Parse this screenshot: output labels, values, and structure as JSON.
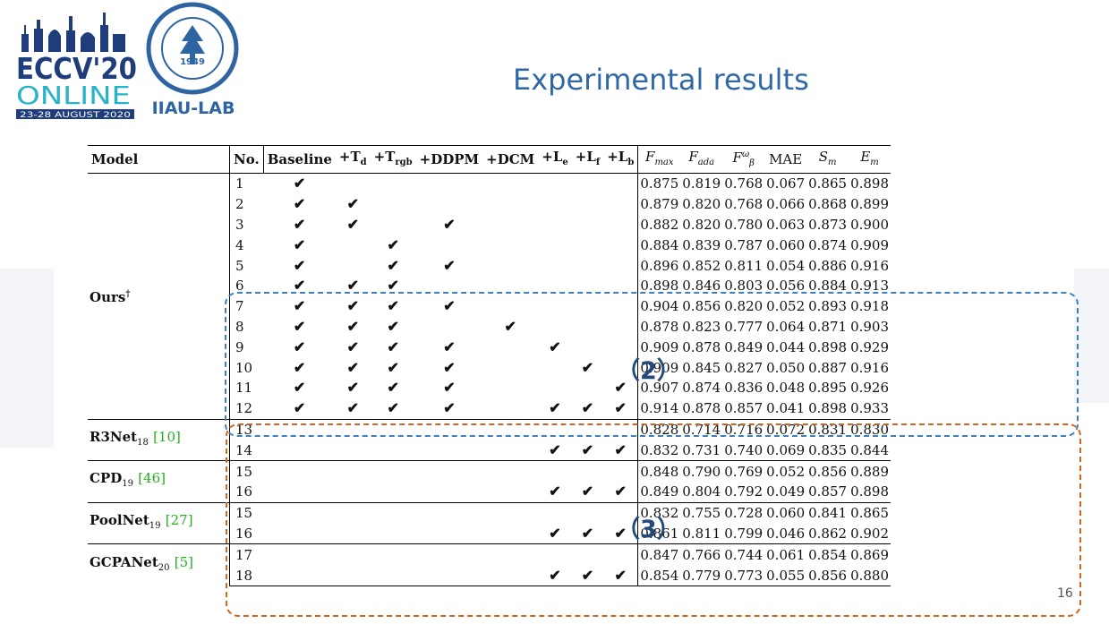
{
  "logos": {
    "eccv_line1": "ECCV'20",
    "eccv_line2": "ONLINE",
    "eccv_line3": "23-28 AUGUST 2020",
    "dut_seal_year": "1949",
    "lab_name": "IIAU-LAB"
  },
  "title": "Experimental results",
  "table": {
    "headers": {
      "model": "Model",
      "no": "No.",
      "baseline": "Baseline",
      "td": "+T",
      "td_sub": "d",
      "trgb": "+T",
      "trgb_sub": "rgb",
      "ddpm": "+DDPM",
      "dcm": "+DCM",
      "le": "+L",
      "le_sub": "e",
      "lf": "+L",
      "lf_sub": "f",
      "lb": "+L",
      "lb_sub": "b",
      "fmax": "F",
      "fmax_sub": "max",
      "fada": "F",
      "fada_sub": "ada",
      "fbeta": "F",
      "fbeta_sub": "β",
      "fbeta_sup": "ω",
      "mae": "MAE",
      "sm": "S",
      "sm_sub": "m",
      "em": "E",
      "em_sub": "m"
    },
    "groups": {
      "ours": {
        "name": "Ours",
        "sup": "†"
      },
      "r3net": {
        "name": "R3Net",
        "sub": "18",
        "cite": "[10]"
      },
      "cpd": {
        "name": "CPD",
        "sub": "19",
        "cite": "[46]"
      },
      "poolnet": {
        "name": "PoolNet",
        "sub": "19",
        "cite": "[27]"
      },
      "gcpanet": {
        "name": "GCPANet",
        "sub": "20",
        "cite": "[5]"
      }
    },
    "check": "✔",
    "rows": [
      {
        "no": "1",
        "checks": [
          "✔",
          "",
          "",
          "",
          "",
          "",
          "",
          ""
        ],
        "metrics": [
          "0.875",
          "0.819",
          "0.768",
          "0.067",
          "0.865",
          "0.898"
        ]
      },
      {
        "no": "2",
        "checks": [
          "✔",
          "✔",
          "",
          "",
          "",
          "",
          "",
          ""
        ],
        "metrics": [
          "0.879",
          "0.820",
          "0.768",
          "0.066",
          "0.868",
          "0.899"
        ]
      },
      {
        "no": "3",
        "checks": [
          "✔",
          "✔",
          "",
          "✔",
          "",
          "",
          "",
          ""
        ],
        "metrics": [
          "0.882",
          "0.820",
          "0.780",
          "0.063",
          "0.873",
          "0.900"
        ]
      },
      {
        "no": "4",
        "checks": [
          "✔",
          "",
          "✔",
          "",
          "",
          "",
          "",
          ""
        ],
        "metrics": [
          "0.884",
          "0.839",
          "0.787",
          "0.060",
          "0.874",
          "0.909"
        ]
      },
      {
        "no": "5",
        "checks": [
          "✔",
          "",
          "✔",
          "✔",
          "",
          "",
          "",
          ""
        ],
        "metrics": [
          "0.896",
          "0.852",
          "0.811",
          "0.054",
          "0.886",
          "0.916"
        ]
      },
      {
        "no": "6",
        "checks": [
          "✔",
          "✔",
          "✔",
          "",
          "",
          "",
          "",
          ""
        ],
        "metrics": [
          "0.898",
          "0.846",
          "0.803",
          "0.056",
          "0.884",
          "0.913"
        ]
      },
      {
        "no": "7",
        "checks": [
          "✔",
          "✔",
          "✔",
          "✔",
          "",
          "",
          "",
          ""
        ],
        "metrics": [
          "0.904",
          "0.856",
          "0.820",
          "0.052",
          "0.893",
          "0.918"
        ]
      },
      {
        "no": "8",
        "checks": [
          "✔",
          "✔",
          "✔",
          "",
          "✔",
          "",
          "",
          ""
        ],
        "metrics": [
          "0.878",
          "0.823",
          "0.777",
          "0.064",
          "0.871",
          "0.903"
        ]
      },
      {
        "no": "9",
        "checks": [
          "✔",
          "✔",
          "✔",
          "✔",
          "",
          "✔",
          "",
          ""
        ],
        "metrics": [
          "0.909",
          "0.878",
          "0.849",
          "0.044",
          "0.898",
          "0.929"
        ]
      },
      {
        "no": "10",
        "checks": [
          "✔",
          "✔",
          "✔",
          "✔",
          "",
          "",
          "✔",
          ""
        ],
        "metrics": [
          "0.909",
          "0.845",
          "0.827",
          "0.050",
          "0.887",
          "0.916"
        ]
      },
      {
        "no": "11",
        "checks": [
          "✔",
          "✔",
          "✔",
          "✔",
          "",
          "",
          "",
          "✔"
        ],
        "metrics": [
          "0.907",
          "0.874",
          "0.836",
          "0.048",
          "0.895",
          "0.926"
        ]
      },
      {
        "no": "12",
        "checks": [
          "✔",
          "✔",
          "✔",
          "✔",
          "",
          "✔",
          "✔",
          "✔"
        ],
        "metrics": [
          "0.914",
          "0.878",
          "0.857",
          "0.041",
          "0.898",
          "0.933"
        ]
      },
      {
        "no": "13",
        "checks": [
          "",
          "",
          "",
          "",
          "",
          "",
          "",
          ""
        ],
        "metrics": [
          "0.828",
          "0.714",
          "0.716",
          "0.072",
          "0.831",
          "0.830"
        ]
      },
      {
        "no": "14",
        "checks": [
          "",
          "",
          "",
          "",
          "",
          "✔",
          "✔",
          "✔"
        ],
        "metrics": [
          "0.832",
          "0.731",
          "0.740",
          "0.069",
          "0.835",
          "0.844"
        ]
      },
      {
        "no": "15",
        "checks": [
          "",
          "",
          "",
          "",
          "",
          "",
          "",
          ""
        ],
        "metrics": [
          "0.848",
          "0.790",
          "0.769",
          "0.052",
          "0.856",
          "0.889"
        ]
      },
      {
        "no": "16",
        "checks": [
          "",
          "",
          "",
          "",
          "",
          "✔",
          "✔",
          "✔"
        ],
        "metrics": [
          "0.849",
          "0.804",
          "0.792",
          "0.049",
          "0.857",
          "0.898"
        ]
      },
      {
        "no": "15",
        "checks": [
          "",
          "",
          "",
          "",
          "",
          "",
          "",
          ""
        ],
        "metrics": [
          "0.832",
          "0.755",
          "0.728",
          "0.060",
          "0.841",
          "0.865"
        ]
      },
      {
        "no": "16",
        "checks": [
          "",
          "",
          "",
          "",
          "",
          "✔",
          "✔",
          "✔"
        ],
        "metrics": [
          "0.861",
          "0.811",
          "0.799",
          "0.046",
          "0.862",
          "0.902"
        ]
      },
      {
        "no": "17",
        "checks": [
          "",
          "",
          "",
          "",
          "",
          "",
          "",
          ""
        ],
        "metrics": [
          "0.847",
          "0.766",
          "0.744",
          "0.061",
          "0.854",
          "0.869"
        ]
      },
      {
        "no": "18",
        "checks": [
          "",
          "",
          "",
          "",
          "",
          "✔",
          "✔",
          "✔"
        ],
        "metrics": [
          "0.854",
          "0.779",
          "0.773",
          "0.055",
          "0.856",
          "0.880"
        ]
      }
    ]
  },
  "annotations": {
    "label_2": "（2）",
    "label_3": "（3）",
    "blue_color": "#3a7fc0",
    "orange_color": "#d0661e"
  },
  "page_number": "16"
}
